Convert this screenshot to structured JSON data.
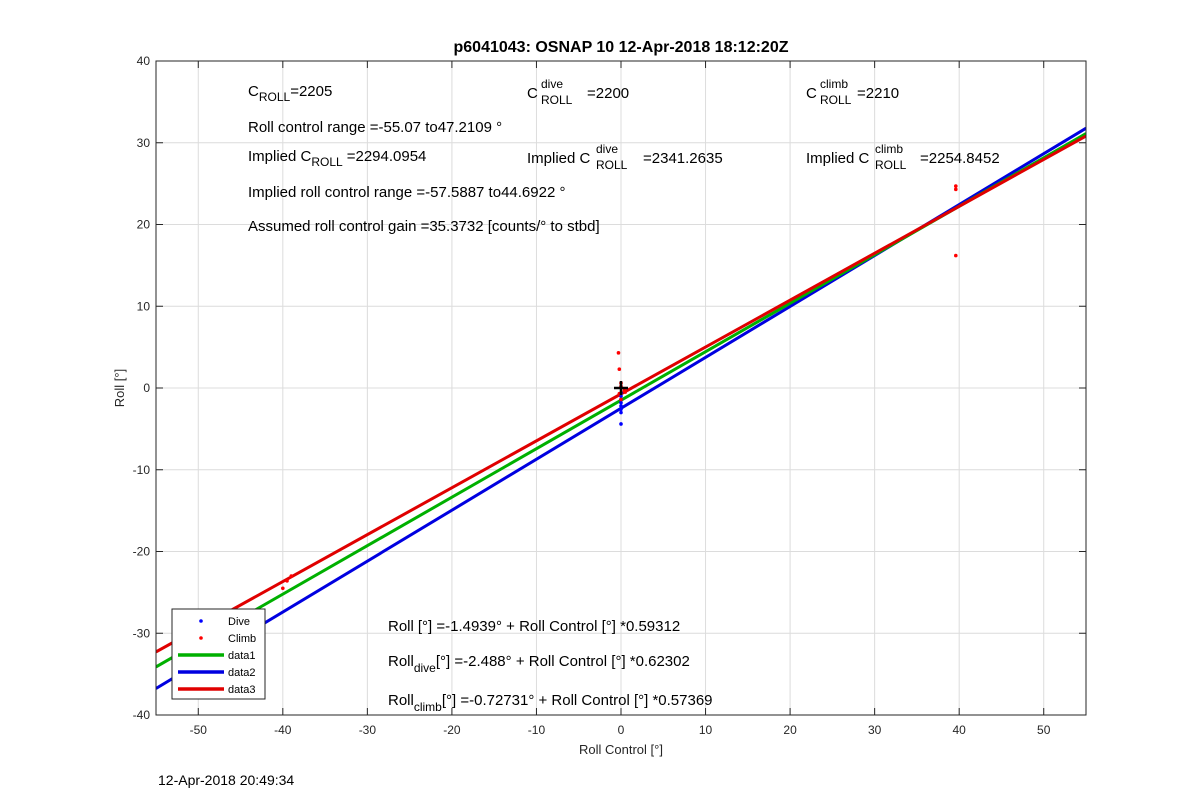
{
  "chart_data": {
    "type": "scatter",
    "title": "p6041043: OSNAP 10 12-Apr-2018 18:12:20Z",
    "xlabel": "Roll Control [°]",
    "ylabel": "Roll [°]",
    "xlim": [
      -55,
      55
    ],
    "ylim": [
      -40,
      40
    ],
    "xticks": [
      -50,
      -40,
      -30,
      -20,
      -10,
      0,
      10,
      20,
      30,
      40,
      50
    ],
    "yticks": [
      -40,
      -30,
      -20,
      -10,
      0,
      10,
      20,
      30,
      40
    ],
    "grid": true,
    "legend_position": "bottom-left",
    "legend": [
      "Dive",
      "Climb",
      "data1",
      "data2",
      "data3"
    ],
    "colors": {
      "dive": "#0000ff",
      "climb": "#ff0000",
      "data1": "#00b000",
      "data2": "#0000e0",
      "data3": "#e00000"
    },
    "series": [
      {
        "name": "Dive",
        "kind": "points",
        "points": [
          [
            0,
            -4.4
          ],
          [
            0,
            -3.0
          ],
          [
            0,
            -2.6
          ],
          [
            0,
            -2.2
          ],
          [
            0,
            -1.8
          ],
          [
            0,
            -1.4
          ],
          [
            0,
            -1.0
          ],
          [
            0,
            -0.6
          ]
        ]
      },
      {
        "name": "Climb",
        "kind": "points",
        "points": [
          [
            -0.3,
            4.3
          ],
          [
            -0.2,
            2.3
          ],
          [
            0,
            0.6
          ],
          [
            0,
            0.2
          ],
          [
            0.4,
            -0.3
          ],
          [
            -0.2,
            -0.7
          ],
          [
            0.5,
            -0.5
          ],
          [
            0,
            -1.4
          ],
          [
            39.6,
            24.7
          ],
          [
            39.6,
            24.3
          ],
          [
            39.6,
            16.2
          ],
          [
            -39,
            -23.0
          ],
          [
            -39.5,
            -23.6
          ],
          [
            -40,
            -24.5
          ]
        ]
      },
      {
        "name": "data1",
        "kind": "line",
        "intercept": -1.4939,
        "slope": 0.59312
      },
      {
        "name": "data2",
        "kind": "line",
        "intercept": -2.488,
        "slope": 0.62302
      },
      {
        "name": "data3",
        "kind": "line",
        "intercept": -0.72731,
        "slope": 0.57369
      }
    ],
    "marker": {
      "x": 0,
      "y": 0,
      "symbol": "+"
    },
    "annotations": {
      "c_roll": {
        "base": "C",
        "sub": "ROLL",
        "rest": "=2205"
      },
      "c_roll_dive": {
        "base": "C",
        "sup": "dive",
        "sub": "ROLL",
        "rest": "=2200"
      },
      "c_roll_climb": {
        "base": "C",
        "sup": "climb",
        "sub": "ROLL",
        "rest": "=2210"
      },
      "roll_range": "Roll control range =-55.07 to47.2109 °",
      "implied_c_roll": {
        "base": "Implied C",
        "sub": "ROLL",
        "rest": "=2294.0954"
      },
      "implied_c_roll_dive": {
        "base": "Implied C",
        "sup": "dive",
        "sub": "ROLL",
        "rest": "=2341.2635"
      },
      "implied_c_roll_climb": {
        "base": "Implied C",
        "sup": "climb",
        "sub": "ROLL",
        "rest": "=2254.8452"
      },
      "implied_range": "Implied roll control range =-57.5887 to44.6922 °",
      "gain": "Assumed roll control gain =35.3732 [counts/° to stbd]",
      "fit_all": {
        "base": "Roll",
        "rest": "[°] =-1.4939° + Roll Control [°] *0.59312"
      },
      "fit_dive": {
        "base": "Roll",
        "sub": "dive",
        "rest": "[°] =-2.488° + Roll Control [°] *0.62302"
      },
      "fit_climb": {
        "base": "Roll",
        "sub": "climb",
        "rest": "[°] =-0.72731° + Roll Control [°] *0.57369"
      }
    }
  },
  "footer": {
    "timestamp": "12-Apr-2018 20:49:34"
  }
}
